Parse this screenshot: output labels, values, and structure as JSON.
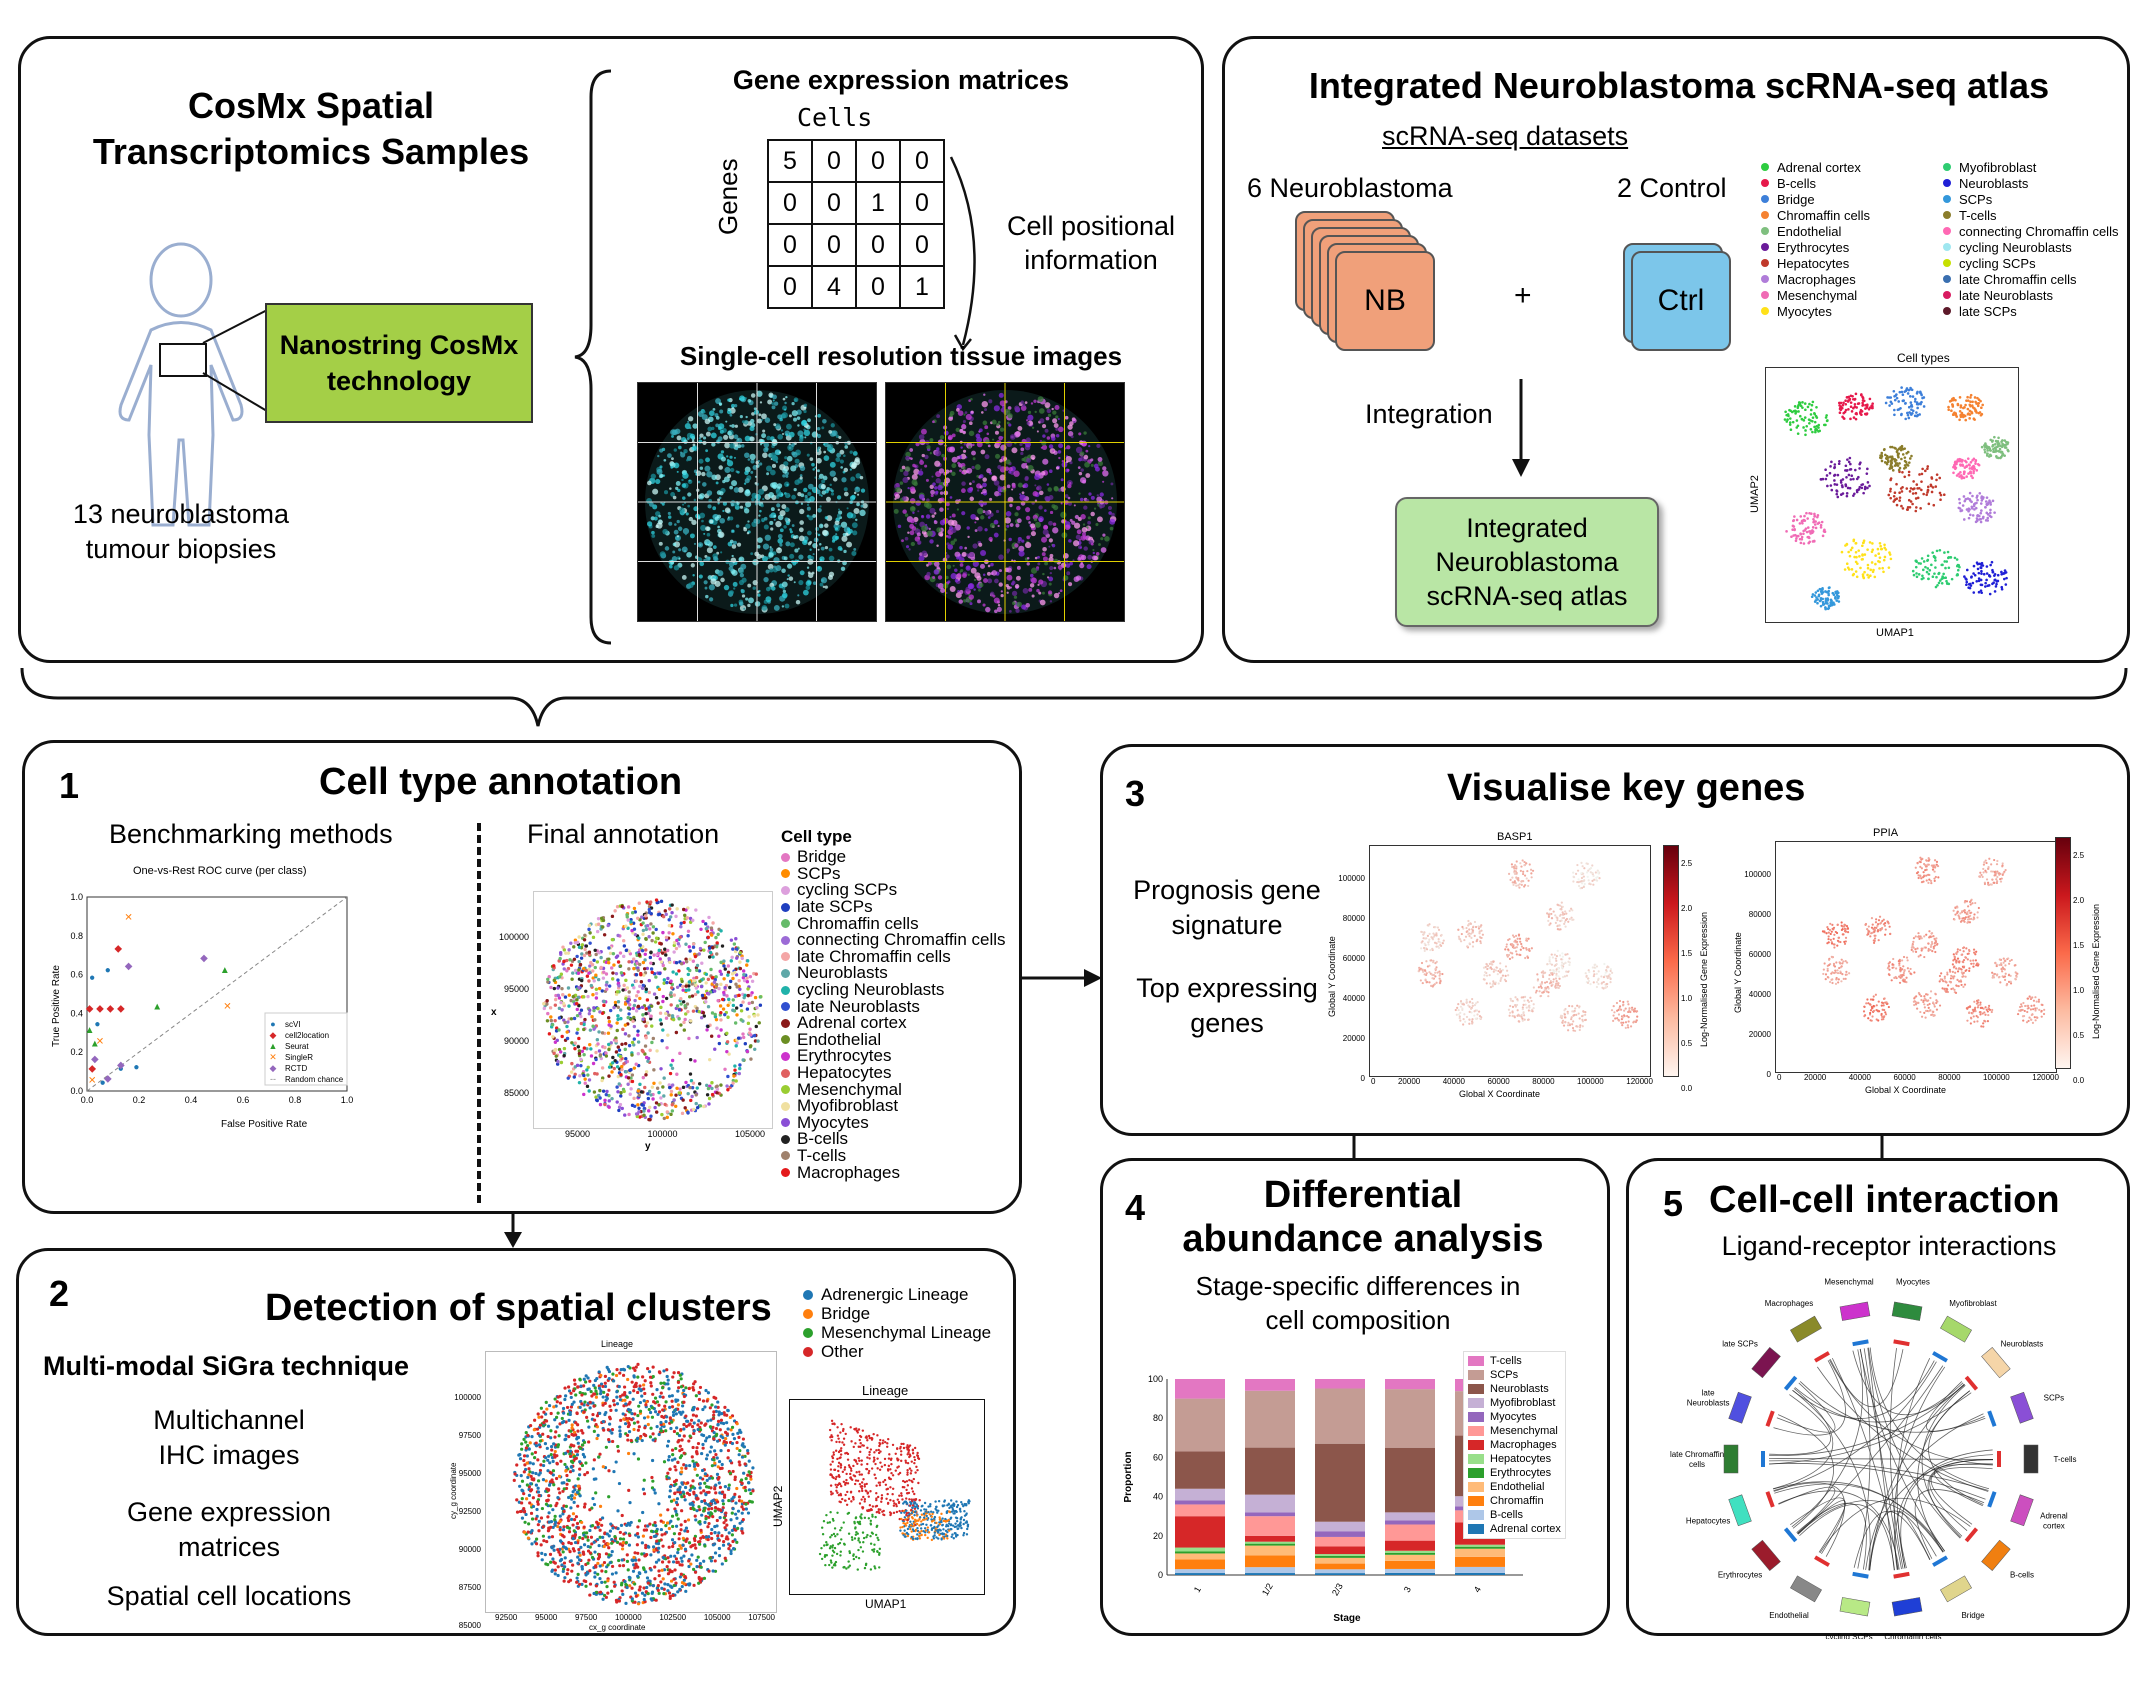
{
  "top_left": {
    "title": "CosMx Spatial\nTranscriptomics Samples",
    "tech_label": "Nanostring CosMx\ntechnology",
    "caption": "13 neuroblastoma\ntumour biopsies",
    "matrices_title": "Gene expression matrices",
    "cells_label": "Cells",
    "genes_label": "Genes",
    "matrix": [
      [
        5,
        0,
        0,
        0
      ],
      [
        0,
        0,
        1,
        0
      ],
      [
        0,
        0,
        0,
        0
      ],
      [
        0,
        4,
        0,
        1
      ]
    ],
    "positional": "Cell positional\ninformation",
    "images_title": "Single-cell resolution tissue images"
  },
  "top_right": {
    "title": "Integrated Neuroblastoma scRNA-seq atlas",
    "datasets": "scRNA-seq datasets",
    "nb_label": "6 Neuroblastoma",
    "ctrl_label": "2 Control",
    "nb_card": "NB",
    "ctrl_card": "Ctrl",
    "plus": "+",
    "integration": "Integration",
    "integrated_box": "Integrated\nNeuroblastoma\nscRNA-seq atlas",
    "umap_title": "Cell types",
    "umap_x": "UMAP1",
    "umap_y": "UMAP2",
    "legend_col1": [
      {
        "label": "Adrenal cortex",
        "color": "#2ecc40"
      },
      {
        "label": "B-cells",
        "color": "#e6194b"
      },
      {
        "label": "Bridge",
        "color": "#3d7fd9"
      },
      {
        "label": "Chromaffin cells",
        "color": "#f58231"
      },
      {
        "label": "Endothelial",
        "color": "#7fbf7f"
      },
      {
        "label": "Erythrocytes",
        "color": "#6a1b9a"
      },
      {
        "label": "Hepatocytes",
        "color": "#c0392b"
      },
      {
        "label": "Macrophages",
        "color": "#b07cd9"
      },
      {
        "label": "Mesenchymal",
        "color": "#f06bb5"
      },
      {
        "label": "Myocytes",
        "color": "#ffe119"
      }
    ],
    "legend_col2": [
      {
        "label": "Myofibroblast",
        "color": "#2ecc71"
      },
      {
        "label": "Neuroblasts",
        "color": "#1f1fd6"
      },
      {
        "label": "SCPs",
        "color": "#3498db"
      },
      {
        "label": "T-cells",
        "color": "#8b7d2b"
      },
      {
        "label": "connecting Chromaffin cells",
        "color": "#ff69b4"
      },
      {
        "label": "cycling Neuroblasts",
        "color": "#9fe7f0"
      },
      {
        "label": "cycling SCPs",
        "color": "#c6e000"
      },
      {
        "label": "late Chromaffin cells",
        "color": "#3a6fb0"
      },
      {
        "label": "late Neuroblasts",
        "color": "#d81b60"
      },
      {
        "label": "late SCPs",
        "color": "#5d1a2a"
      }
    ]
  },
  "panel1": {
    "number": "1",
    "title": "Cell type annotation",
    "bench_title": "Benchmarking methods",
    "final_title": "Final annotation",
    "roc_title": "One-vs-Rest ROC curve (per class)",
    "roc_xlabel": "False Positive Rate",
    "roc_ylabel": "True Positive Rate",
    "roc_ticks": [
      "0.0",
      "0.2",
      "0.4",
      "0.6",
      "0.8",
      "1.0"
    ],
    "roc_legend": [
      {
        "label": "scVI",
        "color": "#1f77b4",
        "marker": "●"
      },
      {
        "label": "cell2location",
        "color": "#d62728",
        "marker": "◆"
      },
      {
        "label": "Seurat",
        "color": "#2ca02c",
        "marker": "▲"
      },
      {
        "label": "SingleR",
        "color": "#ff7f0e",
        "marker": "✕"
      },
      {
        "label": "RCTD",
        "color": "#9467bd",
        "marker": "◆"
      },
      {
        "label": "Random chance",
        "color": "#888888",
        "marker": "---"
      }
    ],
    "tissue_xlabel": "y",
    "tissue_ylabel": "x",
    "tissue_xticks": [
      "95000",
      "100000",
      "105000"
    ],
    "tissue_yticks": [
      "100000",
      "95000",
      "90000",
      "85000"
    ],
    "celltype_title": "Cell type",
    "celltypes": [
      {
        "label": "Bridge",
        "color": "#e377c2"
      },
      {
        "label": "SCPs",
        "color": "#ff8c00"
      },
      {
        "label": "cycling SCPs",
        "color": "#dda0dd"
      },
      {
        "label": "late SCPs",
        "color": "#1f3fbf"
      },
      {
        "label": "Chromaffin cells",
        "color": "#66bb6a"
      },
      {
        "label": "connecting Chromaffin cells",
        "color": "#9c6bd6"
      },
      {
        "label": "late Chromaffin cells",
        "color": "#f4a6a6"
      },
      {
        "label": "Neuroblasts",
        "color": "#5fa8a8"
      },
      {
        "label": "cycling Neuroblasts",
        "color": "#20b2aa"
      },
      {
        "label": "late Neuroblasts",
        "color": "#3050d0"
      },
      {
        "label": "Adrenal cortex",
        "color": "#8b1a1a"
      },
      {
        "label": "Endothelial",
        "color": "#6b8e23"
      },
      {
        "label": "Erythrocytes",
        "color": "#cc33cc"
      },
      {
        "label": "Hepatocytes",
        "color": "#e06060"
      },
      {
        "label": "Mesenchymal",
        "color": "#9acd32"
      },
      {
        "label": "Myofibroblast",
        "color": "#f0e0a0"
      },
      {
        "label": "Myocytes",
        "color": "#8a4fd6"
      },
      {
        "label": "B-cells",
        "color": "#222222"
      },
      {
        "label": "T-cells",
        "color": "#a0826d"
      },
      {
        "label": "Macrophages",
        "color": "#e41a1c"
      }
    ]
  },
  "panel2": {
    "number": "2",
    "title": "Detection of spatial clusters",
    "technique": "Multi-modal SiGra technique",
    "item1": "Multichannel\nIHC images",
    "item2": "Gene expression\nmatrices",
    "item3": "Spatial cell locations",
    "lineage_title": "Lineage",
    "lineage_xlabel": "cx_g coordinate",
    "lineage_ylabel": "cy_g coordinate",
    "xticks": [
      "92500",
      "95000",
      "97500",
      "100000",
      "102500",
      "105000",
      "107500"
    ],
    "yticks": [
      "100000",
      "97500",
      "95000",
      "92500",
      "90000",
      "87500",
      "85000"
    ],
    "umap_title": "Lineage",
    "umap_x": "UMAP1",
    "umap_y": "UMAP2",
    "legend": [
      {
        "label": "Adrenergic Lineage",
        "color": "#1f77b4"
      },
      {
        "label": "Bridge",
        "color": "#ff7f0e"
      },
      {
        "label": "Mesenchymal Lineage",
        "color": "#2ca02c"
      },
      {
        "label": "Other",
        "color": "#d62728"
      }
    ]
  },
  "panel3": {
    "number": "3",
    "title": "Visualise key genes",
    "item1": "Prognosis gene\nsignature",
    "item2": "Top expressing\ngenes",
    "plot1_title": "BASP1",
    "plot2_title": "PPIA",
    "xlabel": "Global X Coordinate",
    "ylabel": "Global Y Coordinate",
    "cbar_label": "Log-Normalised Gene Expression",
    "xticks": [
      "0",
      "20000",
      "40000",
      "60000",
      "80000",
      "100000",
      "120000"
    ],
    "yticks": [
      "100000",
      "80000",
      "60000",
      "40000",
      "20000",
      "0"
    ],
    "cbar_ticks": [
      "2.5",
      "2.0",
      "1.5",
      "1.0",
      "0.5",
      "0.0"
    ]
  },
  "panel4": {
    "number": "4",
    "title": "Differential\nabundance analysis",
    "subtitle": "Stage-specific differences in\ncell composition",
    "xlabel": "Stage",
    "ylabel": "Proportion",
    "yticks": [
      "100",
      "80",
      "60",
      "40",
      "20",
      "0"
    ],
    "legend": [
      {
        "label": "T-cells",
        "color": "#e377c2"
      },
      {
        "label": "SCPs",
        "color": "#c49c94"
      },
      {
        "label": "Neuroblasts",
        "color": "#8c564b"
      },
      {
        "label": "Myofibroblast",
        "color": "#c5b0d5"
      },
      {
        "label": "Myocytes",
        "color": "#9467bd"
      },
      {
        "label": "Mesenchymal",
        "color": "#ff9896"
      },
      {
        "label": "Macrophages",
        "color": "#d62728"
      },
      {
        "label": "Hepatocytes",
        "color": "#98df8a"
      },
      {
        "label": "Erythrocytes",
        "color": "#2ca02c"
      },
      {
        "label": "Endothelial",
        "color": "#ffbb78"
      },
      {
        "label": "Chromaffin",
        "color": "#ff7f0e"
      },
      {
        "label": "B-cells",
        "color": "#aec7e8"
      },
      {
        "label": "Adrenal cortex",
        "color": "#1f77b4"
      }
    ]
  },
  "chart_data": {
    "type": "bar",
    "stacked": true,
    "categories": [
      "1",
      "1/2",
      "2/3",
      "3",
      "4"
    ],
    "xlabel": "Stage",
    "ylabel": "Proportion",
    "ylim": [
      0,
      100
    ],
    "series": [
      {
        "name": "Adrenal cortex",
        "values": [
          1,
          1,
          1,
          1,
          1
        ]
      },
      {
        "name": "B-cells",
        "values": [
          2,
          3,
          2,
          2,
          3
        ]
      },
      {
        "name": "Chromaffin",
        "values": [
          5,
          6,
          3,
          4,
          5
        ]
      },
      {
        "name": "Endothelial",
        "values": [
          3,
          5,
          3,
          3,
          4
        ]
      },
      {
        "name": "Erythrocytes",
        "values": [
          1,
          1,
          1,
          1,
          1
        ]
      },
      {
        "name": "Hepatocytes",
        "values": [
          2,
          1,
          1,
          1,
          1
        ]
      },
      {
        "name": "Macrophages",
        "values": [
          16,
          3,
          4,
          5,
          11
        ]
      },
      {
        "name": "Mesenchymal",
        "values": [
          6,
          10,
          5,
          8,
          6
        ]
      },
      {
        "name": "Myocytes",
        "values": [
          2,
          2,
          3,
          2,
          2
        ]
      },
      {
        "name": "Myofibroblast",
        "values": [
          6,
          9,
          5,
          4,
          5
        ]
      },
      {
        "name": "Neuroblasts",
        "values": [
          19,
          24,
          41,
          32,
          30
        ]
      },
      {
        "name": "SCPs",
        "values": [
          27,
          29,
          29,
          29,
          22
        ]
      },
      {
        "name": "T-cells",
        "values": [
          10,
          6,
          5,
          5,
          6
        ]
      }
    ]
  },
  "panel5": {
    "number": "5",
    "title": "Cell-cell interaction",
    "subtitle": "Ligand-receptor interactions",
    "segments": [
      {
        "label": "Myocytes",
        "color": "#2e8b3e"
      },
      {
        "label": "Myofibroblast",
        "color": "#a6d86b"
      },
      {
        "label": "Neuroblasts",
        "color": "#f5d5a8"
      },
      {
        "label": "SCPs",
        "color": "#8a4fd6"
      },
      {
        "label": "T-cells",
        "color": "#333333"
      },
      {
        "label": "Adrenal\ncortex",
        "color": "#cc4fbf"
      },
      {
        "label": "B-cells",
        "color": "#f07f10"
      },
      {
        "label": "Bridge",
        "color": "#e0d58c"
      },
      {
        "label": "Chromaffin cells",
        "color": "#1f3fd6"
      },
      {
        "label": "cycling SCPs",
        "color": "#b8e986"
      },
      {
        "label": "Endothelial",
        "color": "#888888"
      },
      {
        "label": "Erythrocytes",
        "color": "#9b1c2c"
      },
      {
        "label": "Hepatocytes",
        "color": "#40e0c0"
      },
      {
        "label": "late Chromaffin\ncells",
        "color": "#2e7d32"
      },
      {
        "label": "late\nNeuroblasts",
        "color": "#5050e0"
      },
      {
        "label": "late SCPs",
        "color": "#7b1450"
      },
      {
        "label": "Macrophages",
        "color": "#8a8a2a"
      },
      {
        "label": "Mesenchymal",
        "color": "#cc33cc"
      }
    ]
  }
}
